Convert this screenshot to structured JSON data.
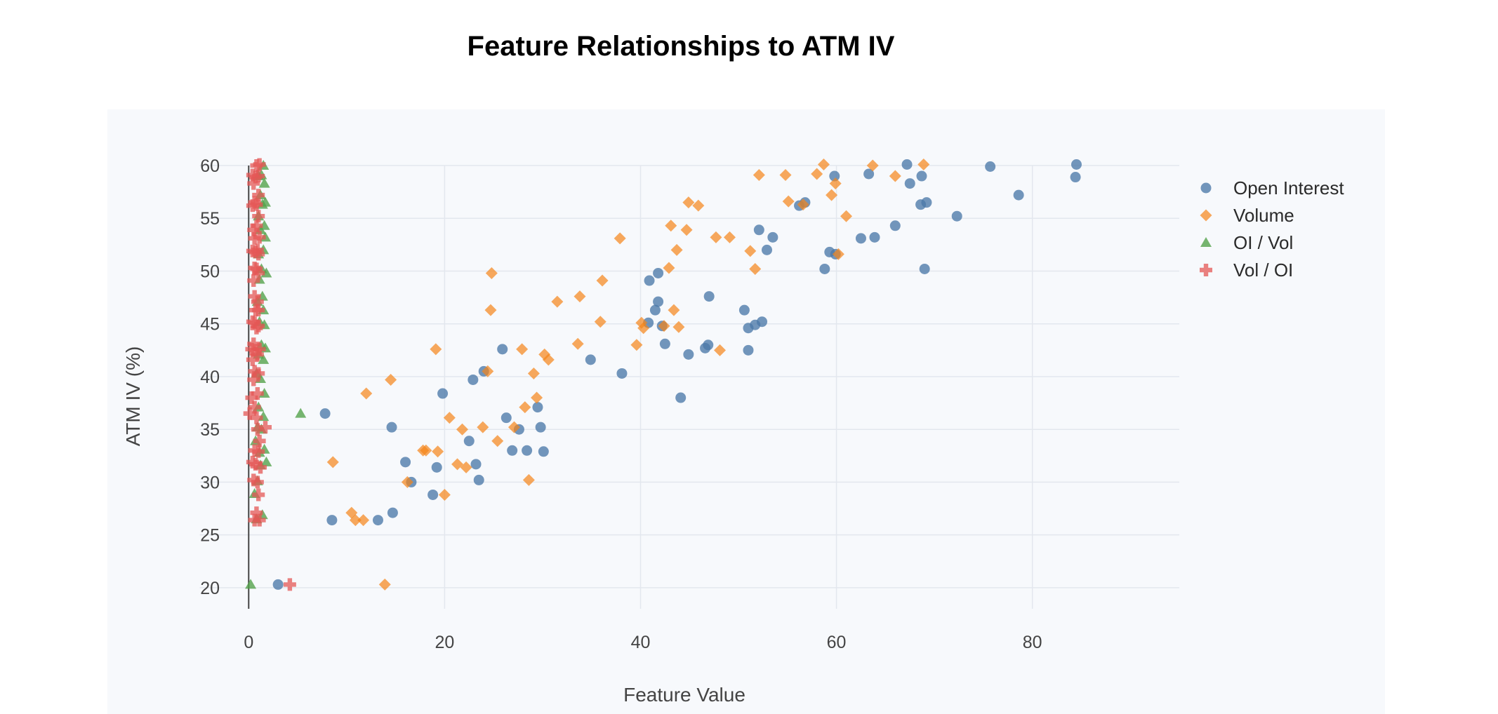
{
  "chart_data": {
    "type": "scatter",
    "title": "Feature Relationships to ATM IV",
    "xlabel": "Feature Value",
    "ylabel": "ATM IV (%)",
    "xlim": [
      -5,
      95
    ],
    "ylim": [
      18,
      60
    ],
    "x_ticks": [
      0,
      20,
      40,
      60,
      80
    ],
    "y_ticks": [
      20,
      25,
      30,
      35,
      40,
      45,
      50,
      55,
      60
    ],
    "grid": true,
    "legend_position": "top-right",
    "series": [
      {
        "name": "Open Interest",
        "color": "#4c78a8",
        "marker": "circle",
        "points": [
          [
            3,
            20.3
          ],
          [
            8.5,
            26.4
          ],
          [
            13.2,
            26.4
          ],
          [
            14.7,
            27.1
          ],
          [
            7.8,
            36.5
          ],
          [
            14.6,
            35.2
          ],
          [
            16,
            31.9
          ],
          [
            16.6,
            30
          ],
          [
            18.8,
            28.8
          ],
          [
            19.2,
            31.4
          ],
          [
            19.8,
            38.4
          ],
          [
            22.5,
            33.9
          ],
          [
            23.2,
            31.7
          ],
          [
            23.5,
            30.2
          ],
          [
            22.9,
            39.7
          ],
          [
            24,
            40.5
          ],
          [
            25.9,
            42.6
          ],
          [
            26.3,
            36.1
          ],
          [
            26.9,
            33
          ],
          [
            27.6,
            35
          ],
          [
            28.4,
            33
          ],
          [
            29.5,
            37.1
          ],
          [
            29.8,
            35.2
          ],
          [
            30.1,
            32.9
          ],
          [
            34.9,
            41.6
          ],
          [
            38.1,
            40.3
          ],
          [
            40.8,
            45.1
          ],
          [
            40.9,
            49.1
          ],
          [
            41.5,
            46.3
          ],
          [
            41.8,
            47.1
          ],
          [
            41.8,
            49.8
          ],
          [
            42.2,
            44.8
          ],
          [
            42.5,
            43.1
          ],
          [
            44.1,
            38
          ],
          [
            44.9,
            42.1
          ],
          [
            46.6,
            42.7
          ],
          [
            46.9,
            43
          ],
          [
            47.0,
            47.6
          ],
          [
            50.6,
            46.3
          ],
          [
            51.0,
            44.6
          ],
          [
            51.0,
            42.5
          ],
          [
            51.7,
            44.9
          ],
          [
            52.4,
            45.2
          ],
          [
            52.1,
            53.9
          ],
          [
            52.9,
            52
          ],
          [
            53.5,
            53.2
          ],
          [
            56.2,
            56.2
          ],
          [
            56.8,
            56.5
          ],
          [
            58.8,
            50.2
          ],
          [
            59.3,
            51.8
          ],
          [
            59.9,
            51.6
          ],
          [
            59.8,
            59
          ],
          [
            62.5,
            53.1
          ],
          [
            63.3,
            59.2
          ],
          [
            63.9,
            53.2
          ],
          [
            66.0,
            54.3
          ],
          [
            67.2,
            60.1
          ],
          [
            67.5,
            58.3
          ],
          [
            68.6,
            56.3
          ],
          [
            69.2,
            56.5
          ],
          [
            68.7,
            59
          ],
          [
            69.0,
            50.2
          ],
          [
            72.3,
            55.2
          ],
          [
            75.7,
            59.9
          ],
          [
            78.6,
            57.2
          ],
          [
            84.4,
            58.9
          ],
          [
            84.5,
            60.1
          ]
        ]
      },
      {
        "name": "Volume",
        "color": "#f58518",
        "marker": "diamond",
        "points": [
          [
            13.9,
            20.3
          ],
          [
            10.5,
            27.1
          ],
          [
            10.9,
            26.4
          ],
          [
            11.7,
            26.4
          ],
          [
            8.6,
            31.9
          ],
          [
            12,
            38.4
          ],
          [
            14.5,
            39.7
          ],
          [
            16.2,
            30
          ],
          [
            17.8,
            33
          ],
          [
            18.1,
            33
          ],
          [
            19.3,
            32.9
          ],
          [
            20,
            28.8
          ],
          [
            20.5,
            36.1
          ],
          [
            19.1,
            42.6
          ],
          [
            21.3,
            31.7
          ],
          [
            21.8,
            35
          ],
          [
            22.2,
            31.4
          ],
          [
            23.9,
            35.2
          ],
          [
            24.4,
            40.5
          ],
          [
            24.7,
            46.3
          ],
          [
            24.8,
            49.8
          ],
          [
            25.4,
            33.9
          ],
          [
            27.1,
            35.2
          ],
          [
            27.9,
            42.6
          ],
          [
            28.2,
            37.1
          ],
          [
            28.6,
            30.2
          ],
          [
            29.4,
            38
          ],
          [
            29.1,
            40.3
          ],
          [
            30.2,
            42.1
          ],
          [
            30.6,
            41.6
          ],
          [
            31.5,
            47.1
          ],
          [
            33.6,
            43.1
          ],
          [
            33.8,
            47.6
          ],
          [
            35.9,
            45.2
          ],
          [
            36.1,
            49.1
          ],
          [
            37.9,
            53.1
          ],
          [
            39.6,
            43
          ],
          [
            40.1,
            45.1
          ],
          [
            40.3,
            44.6
          ],
          [
            42.4,
            44.8
          ],
          [
            42.9,
            50.3
          ],
          [
            43.1,
            54.3
          ],
          [
            43.4,
            46.3
          ],
          [
            43.7,
            52
          ],
          [
            43.9,
            44.7
          ],
          [
            44.7,
            53.9
          ],
          [
            44.9,
            56.5
          ],
          [
            45.9,
            56.2
          ],
          [
            47.7,
            53.2
          ],
          [
            48.1,
            42.5
          ],
          [
            49.1,
            53.2
          ],
          [
            51.2,
            51.9
          ],
          [
            51.7,
            50.2
          ],
          [
            52.1,
            59.1
          ],
          [
            55.1,
            56.6
          ],
          [
            54.8,
            59.1
          ],
          [
            56.6,
            56.3
          ],
          [
            58.0,
            59.2
          ],
          [
            58.7,
            60.1
          ],
          [
            59.5,
            57.2
          ],
          [
            59.9,
            58.3
          ],
          [
            60.2,
            51.6
          ],
          [
            61.0,
            55.2
          ],
          [
            63.7,
            60
          ],
          [
            66.0,
            59
          ],
          [
            68.9,
            60.1
          ]
        ]
      },
      {
        "name": "OI / Vol",
        "color": "#54a24b",
        "marker": "triangle",
        "points": [
          [
            0.2,
            20.3
          ],
          [
            5.3,
            36.5
          ],
          [
            0.8,
            26.5
          ],
          [
            1.4,
            26.9
          ],
          [
            0.6,
            28.9
          ],
          [
            0.9,
            30.1
          ],
          [
            1.2,
            31.6
          ],
          [
            1.8,
            31.9
          ],
          [
            1.1,
            32.8
          ],
          [
            1.6,
            33.1
          ],
          [
            0.7,
            33.9
          ],
          [
            1.3,
            35
          ],
          [
            0.9,
            35.2
          ],
          [
            1.5,
            36.2
          ],
          [
            1.0,
            37.1
          ],
          [
            1.6,
            38.4
          ],
          [
            1.2,
            39.8
          ],
          [
            0.8,
            40.3
          ],
          [
            1.5,
            41.6
          ],
          [
            1.0,
            42.1
          ],
          [
            1.7,
            42.7
          ],
          [
            1.3,
            43
          ],
          [
            1.6,
            44.9
          ],
          [
            1.1,
            45.2
          ],
          [
            1.5,
            46.3
          ],
          [
            0.9,
            47.1
          ],
          [
            1.4,
            47.6
          ],
          [
            1.1,
            49.2
          ],
          [
            1.8,
            49.8
          ],
          [
            1.3,
            50.2
          ],
          [
            1.0,
            51.6
          ],
          [
            1.5,
            52
          ],
          [
            1.7,
            53.2
          ],
          [
            1.2,
            53.9
          ],
          [
            1.6,
            54.3
          ],
          [
            1.0,
            55.2
          ],
          [
            1.4,
            56.3
          ],
          [
            1.7,
            56.5
          ],
          [
            1.2,
            57.2
          ],
          [
            1.6,
            58.3
          ],
          [
            1.0,
            59
          ],
          [
            1.3,
            59.1
          ],
          [
            1.5,
            60
          ]
        ]
      },
      {
        "name": "Vol / OI",
        "color": "#e45756",
        "marker": "cross",
        "points": [
          [
            4.2,
            20.3
          ],
          [
            0.1,
            36.5
          ],
          [
            0.6,
            26.4
          ],
          [
            1.1,
            26.4
          ],
          [
            0.8,
            27.1
          ],
          [
            1.0,
            28.8
          ],
          [
            0.9,
            30
          ],
          [
            0.5,
            30.2
          ],
          [
            1.2,
            31.4
          ],
          [
            0.7,
            31.7
          ],
          [
            0.4,
            31.9
          ],
          [
            1.0,
            32.9
          ],
          [
            0.6,
            33
          ],
          [
            1.1,
            33.9
          ],
          [
            0.9,
            35
          ],
          [
            1.7,
            35.2
          ],
          [
            0.8,
            36.1
          ],
          [
            0.6,
            37.1
          ],
          [
            0.3,
            38
          ],
          [
            0.9,
            38.4
          ],
          [
            0.5,
            39.7
          ],
          [
            1.0,
            40.3
          ],
          [
            0.6,
            40.5
          ],
          [
            0.4,
            41.6
          ],
          [
            0.9,
            42.1
          ],
          [
            0.7,
            42.5
          ],
          [
            0.3,
            42.6
          ],
          [
            1.1,
            42.6
          ],
          [
            0.5,
            43.1
          ],
          [
            0.8,
            44.6
          ],
          [
            1.0,
            44.8
          ],
          [
            0.6,
            45.1
          ],
          [
            0.4,
            45.2
          ],
          [
            1.0,
            46.3
          ],
          [
            0.7,
            46.3
          ],
          [
            0.9,
            47.1
          ],
          [
            0.6,
            47.6
          ],
          [
            0.5,
            49.1
          ],
          [
            1.0,
            49.8
          ],
          [
            0.8,
            50.2
          ],
          [
            0.6,
            50.3
          ],
          [
            1.0,
            51.6
          ],
          [
            0.7,
            51.8
          ],
          [
            0.4,
            51.9
          ],
          [
            0.9,
            52
          ],
          [
            0.6,
            53.1
          ],
          [
            1.1,
            53.2
          ],
          [
            0.5,
            53.9
          ],
          [
            0.8,
            54.3
          ],
          [
            1.0,
            55.2
          ],
          [
            0.4,
            56.2
          ],
          [
            0.8,
            56.3
          ],
          [
            0.6,
            56.5
          ],
          [
            1.0,
            57.2
          ],
          [
            0.5,
            58.3
          ],
          [
            0.7,
            58.9
          ],
          [
            1.0,
            59
          ],
          [
            0.4,
            59.1
          ],
          [
            0.8,
            60
          ],
          [
            1.1,
            60.1
          ]
        ]
      }
    ]
  }
}
